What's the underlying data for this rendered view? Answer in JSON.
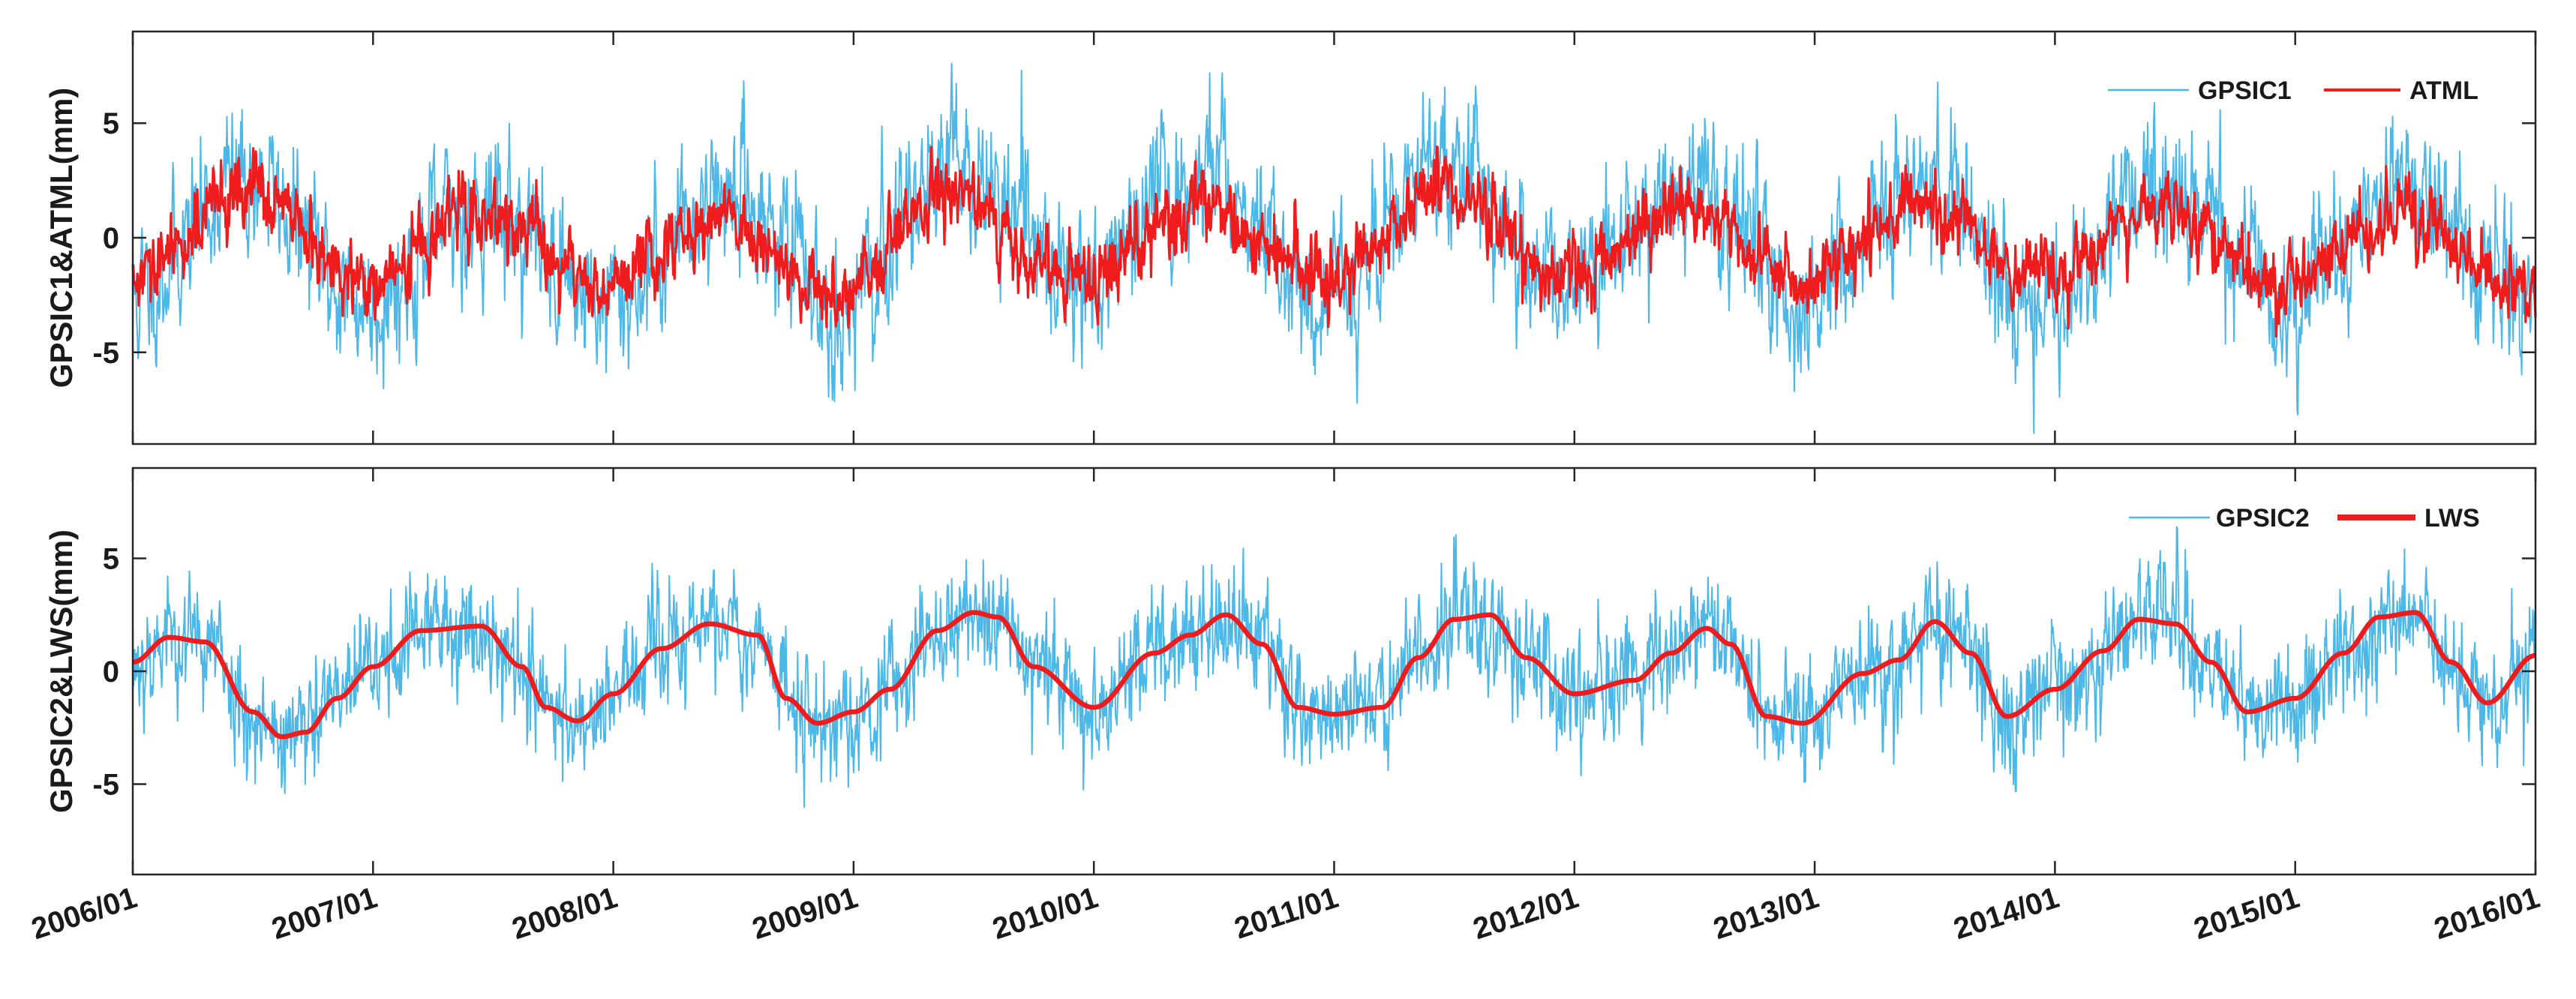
{
  "chart_data": [
    {
      "type": "line",
      "ylabel": "GPSIC1&ATML(mm)",
      "ylim": [
        -9,
        9
      ],
      "yticks": [
        -5,
        0,
        5
      ],
      "ytick_labels": [
        "-5",
        "0",
        "5"
      ],
      "xlim": [
        2006.0,
        2016.0
      ],
      "x_start": 2006.0,
      "days_per_year": 365,
      "legend_location": "top-right",
      "series": [
        {
          "name": "GPSIC1",
          "color": "#4cb8e8",
          "style": "thin",
          "description_of_shape": "daily noisy series with annual cycle",
          "annual": {
            "amp": 2.0,
            "phase": 0.2
          },
          "noise": 1.8,
          "segments": [
            {
              "year": 2006.0,
              "offset": -0.8
            },
            {
              "year": 2006.5,
              "offset": 0.6
            },
            {
              "year": 2007.0,
              "offset": -0.8
            },
            {
              "year": 2007.8,
              "offset": -0.4
            },
            {
              "year": 2008.0,
              "offset": -1.0
            },
            {
              "year": 2008.6,
              "offset": 0.2
            },
            {
              "year": 2009.0,
              "offset": -1.3
            },
            {
              "year": 2009.3,
              "offset": 1.8
            },
            {
              "year": 2009.6,
              "offset": 0.5
            },
            {
              "year": 2010.0,
              "offset": 0.4
            },
            {
              "year": 2010.5,
              "offset": 0.9
            },
            {
              "year": 2011.0,
              "offset": -0.5
            },
            {
              "year": 2011.5,
              "offset": 1.3
            },
            {
              "year": 2012.0,
              "offset": -0.6
            },
            {
              "year": 2012.5,
              "offset": 0.3
            },
            {
              "year": 2013.0,
              "offset": -0.6
            },
            {
              "year": 2013.5,
              "offset": 0.1
            },
            {
              "year": 2014.0,
              "offset": -0.8
            },
            {
              "year": 2014.5,
              "offset": 0.4
            },
            {
              "year": 2015.0,
              "offset": -0.9
            },
            {
              "year": 2015.5,
              "offset": 0.1
            },
            {
              "year": 2016.0,
              "offset": -0.9
            }
          ],
          "seed": 11
        },
        {
          "name": "ATML",
          "color": "#ee1c1c",
          "style": "medium",
          "description_of_shape": "daily series, smoother than GPSIC1",
          "annual": {
            "amp": 1.6,
            "phase": 0.2
          },
          "noise": 0.9,
          "segments": [
            {
              "year": 2006.0,
              "offset": -0.6
            },
            {
              "year": 2006.5,
              "offset": 0.5
            },
            {
              "year": 2007.0,
              "offset": -0.5
            },
            {
              "year": 2008.0,
              "offset": -0.5
            },
            {
              "year": 2009.0,
              "offset": -1.0
            },
            {
              "year": 2009.3,
              "offset": 1.0
            },
            {
              "year": 2009.6,
              "offset": -0.3
            },
            {
              "year": 2010.0,
              "offset": -0.2
            },
            {
              "year": 2011.0,
              "offset": -0.3
            },
            {
              "year": 2011.5,
              "offset": 0.5
            },
            {
              "year": 2012.0,
              "offset": -0.3
            },
            {
              "year": 2013.0,
              "offset": -0.2
            },
            {
              "year": 2014.0,
              "offset": -0.2
            },
            {
              "year": 2015.0,
              "offset": -0.4
            },
            {
              "year": 2016.0,
              "offset": -0.6
            }
          ],
          "seed": 29
        }
      ]
    },
    {
      "type": "line",
      "ylabel": "GPSIC2&LWS(mm)",
      "ylim": [
        -9,
        9
      ],
      "yticks": [
        -5,
        0,
        5
      ],
      "ytick_labels": [
        "-5",
        "0",
        "5"
      ],
      "xlim": [
        2006.0,
        2016.0
      ],
      "x_start": 2006.0,
      "days_per_year": 365,
      "legend_location": "top-right",
      "series": [
        {
          "name": "GPSIC2",
          "color": "#4cb8e8",
          "style": "thin",
          "description_of_shape": "daily noisy series following LWS",
          "follow": "LWS",
          "noise": 1.4,
          "seed": 53
        },
        {
          "name": "LWS",
          "color": "#ee1c1c",
          "style": "thick",
          "description_of_shape": "smooth annual cycle",
          "knots": {
            "x": [
              2006.0,
              2006.15,
              2006.3,
              2006.5,
              2006.62,
              2006.72,
              2006.85,
              2007.0,
              2007.2,
              2007.45,
              2007.62,
              2007.72,
              2007.85,
              2008.0,
              2008.2,
              2008.4,
              2008.6,
              2008.72,
              2008.85,
              2009.0,
              2009.15,
              2009.35,
              2009.5,
              2009.6,
              2009.75,
              2010.0,
              2010.25,
              2010.4,
              2010.55,
              2010.7,
              2010.85,
              2011.0,
              2011.2,
              2011.35,
              2011.5,
              2011.65,
              2011.8,
              2012.0,
              2012.25,
              2012.4,
              2012.55,
              2012.65,
              2012.8,
              2012.95,
              2013.2,
              2013.35,
              2013.5,
              2013.65,
              2013.8,
              2014.0,
              2014.2,
              2014.35,
              2014.5,
              2014.65,
              2014.8,
              2015.0,
              2015.2,
              2015.35,
              2015.5,
              2015.65,
              2015.8,
              2016.0
            ],
            "y": [
              0.4,
              1.5,
              1.3,
              -1.8,
              -2.9,
              -2.7,
              -1.2,
              0.2,
              1.8,
              2.0,
              0.2,
              -1.6,
              -2.2,
              -1.0,
              1.0,
              2.1,
              1.6,
              -1.2,
              -2.3,
              -1.8,
              -0.8,
              1.8,
              2.6,
              2.4,
              0.2,
              -1.6,
              0.8,
              1.6,
              2.5,
              1.2,
              -1.6,
              -1.9,
              -1.6,
              0.6,
              2.3,
              2.5,
              0.6,
              -1.0,
              -0.4,
              0.8,
              1.9,
              1.2,
              -2.0,
              -2.3,
              -0.1,
              0.5,
              2.2,
              0.8,
              -2.0,
              -0.8,
              0.9,
              2.3,
              2.1,
              0.4,
              -1.8,
              -1.2,
              0.8,
              2.4,
              2.6,
              0.4,
              -1.4,
              0.7
            ]
          }
        }
      ]
    }
  ],
  "xticks": [
    2006,
    2007,
    2008,
    2009,
    2010,
    2011,
    2012,
    2013,
    2014,
    2015,
    2016
  ],
  "xtick_labels": [
    "2006/01",
    "2007/01",
    "2008/01",
    "2009/01",
    "2010/01",
    "2011/01",
    "2012/01",
    "2013/01",
    "2014/01",
    "2015/01",
    "2016/01"
  ]
}
